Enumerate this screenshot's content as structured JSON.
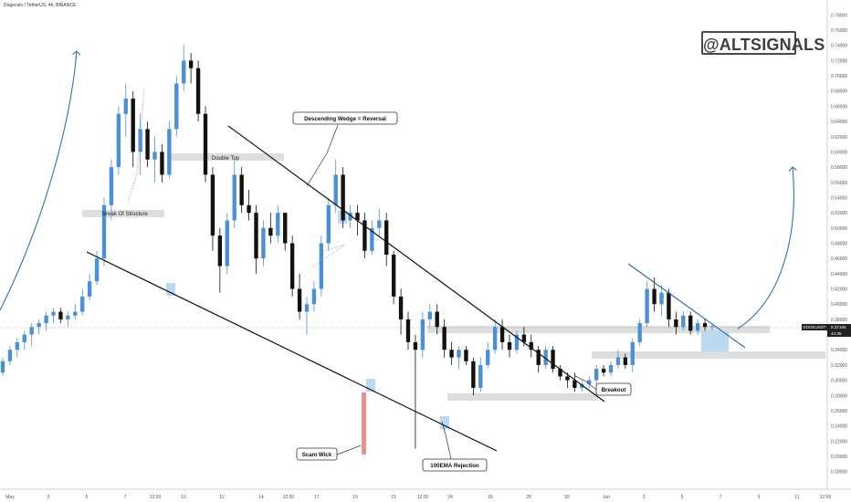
{
  "chart_data": {
    "type": "candlestick",
    "title": "Dogecoin / TetherUS, 4h, BINANCE",
    "watermark": "@ALTSIGNALS",
    "ylim": [
      0.17,
      0.79
    ],
    "y_ticks": [
      "0.18000",
      "0.20000",
      "0.22000",
      "0.24000",
      "0.26000",
      "0.28000",
      "0.30000",
      "0.32000",
      "0.34000",
      "0.36000",
      "0.38000",
      "0.40000",
      "0.42000",
      "0.44000",
      "0.46000",
      "0.48000",
      "0.50000",
      "0.52000",
      "0.54000",
      "0.56000",
      "0.58000",
      "0.60000",
      "0.62000",
      "0.64000",
      "0.66000",
      "0.68000",
      "0.70000",
      "0.72000",
      "0.74000",
      "0.76000",
      "0.78000"
    ],
    "x_ticks": [
      "May",
      "3",
      "5",
      "7",
      "12:00",
      "10",
      "12",
      "14",
      "12:00",
      "17",
      "19",
      "21",
      "12:00",
      "24",
      "26",
      "28",
      "30",
      "Jun",
      "3",
      "5",
      "7",
      "9",
      "11",
      "12:00"
    ],
    "price_label": {
      "symbol": "DOGEUSDT",
      "price": "0.37105",
      "countdown": "44:35"
    },
    "series": [
      {
        "name": "",
        "ohlc": [
          [
            0.31,
            0.33,
            0.305,
            0.325
          ],
          [
            0.325,
            0.345,
            0.32,
            0.34
          ],
          [
            0.34,
            0.355,
            0.33,
            0.35
          ],
          [
            0.35,
            0.365,
            0.34,
            0.36
          ],
          [
            0.36,
            0.375,
            0.345,
            0.37
          ],
          [
            0.37,
            0.38,
            0.36,
            0.375
          ],
          [
            0.375,
            0.39,
            0.365,
            0.385
          ],
          [
            0.385,
            0.395,
            0.375,
            0.39
          ],
          [
            0.39,
            0.395,
            0.375,
            0.38
          ],
          [
            0.38,
            0.39,
            0.37,
            0.385
          ],
          [
            0.385,
            0.4,
            0.38,
            0.39
          ],
          [
            0.39,
            0.42,
            0.385,
            0.41
          ],
          [
            0.41,
            0.44,
            0.405,
            0.43
          ],
          [
            0.43,
            0.47,
            0.425,
            0.46
          ],
          [
            0.46,
            0.54,
            0.45,
            0.53
          ],
          [
            0.53,
            0.59,
            0.51,
            0.58
          ],
          [
            0.58,
            0.66,
            0.57,
            0.65
          ],
          [
            0.65,
            0.69,
            0.62,
            0.67
          ],
          [
            0.67,
            0.68,
            0.58,
            0.6
          ],
          [
            0.6,
            0.65,
            0.57,
            0.63
          ],
          [
            0.63,
            0.64,
            0.58,
            0.59
          ],
          [
            0.59,
            0.62,
            0.56,
            0.6
          ],
          [
            0.6,
            0.61,
            0.56,
            0.57
          ],
          [
            0.57,
            0.64,
            0.565,
            0.63
          ],
          [
            0.63,
            0.7,
            0.62,
            0.69
          ],
          [
            0.69,
            0.74,
            0.68,
            0.72
          ],
          [
            0.72,
            0.73,
            0.69,
            0.71
          ],
          [
            0.71,
            0.72,
            0.64,
            0.65
          ],
          [
            0.65,
            0.66,
            0.56,
            0.57
          ],
          [
            0.57,
            0.58,
            0.47,
            0.49
          ],
          [
            0.49,
            0.5,
            0.415,
            0.45
          ],
          [
            0.45,
            0.52,
            0.44,
            0.51
          ],
          [
            0.51,
            0.59,
            0.5,
            0.57
          ],
          [
            0.57,
            0.58,
            0.52,
            0.53
          ],
          [
            0.53,
            0.55,
            0.51,
            0.52
          ],
          [
            0.52,
            0.53,
            0.44,
            0.46
          ],
          [
            0.46,
            0.51,
            0.45,
            0.5
          ],
          [
            0.5,
            0.52,
            0.48,
            0.49
          ],
          [
            0.49,
            0.53,
            0.48,
            0.52
          ],
          [
            0.52,
            0.52,
            0.47,
            0.48
          ],
          [
            0.48,
            0.49,
            0.41,
            0.42
          ],
          [
            0.42,
            0.44,
            0.38,
            0.39
          ],
          [
            0.39,
            0.41,
            0.36,
            0.4
          ],
          [
            0.4,
            0.43,
            0.39,
            0.42
          ],
          [
            0.42,
            0.49,
            0.41,
            0.48
          ],
          [
            0.48,
            0.54,
            0.47,
            0.53
          ],
          [
            0.53,
            0.59,
            0.52,
            0.57
          ],
          [
            0.57,
            0.58,
            0.5,
            0.51
          ],
          [
            0.51,
            0.53,
            0.5,
            0.52
          ],
          [
            0.52,
            0.53,
            0.49,
            0.51
          ],
          [
            0.51,
            0.52,
            0.46,
            0.47
          ],
          [
            0.47,
            0.51,
            0.465,
            0.5
          ],
          [
            0.5,
            0.525,
            0.49,
            0.51
          ],
          [
            0.51,
            0.52,
            0.45,
            0.465
          ],
          [
            0.465,
            0.47,
            0.4,
            0.41
          ],
          [
            0.41,
            0.42,
            0.36,
            0.38
          ],
          [
            0.38,
            0.39,
            0.34,
            0.35
          ],
          [
            0.35,
            0.36,
            0.21,
            0.34
          ],
          [
            0.34,
            0.39,
            0.33,
            0.38
          ],
          [
            0.38,
            0.4,
            0.37,
            0.39
          ],
          [
            0.39,
            0.4,
            0.36,
            0.37
          ],
          [
            0.37,
            0.38,
            0.33,
            0.34
          ],
          [
            0.34,
            0.35,
            0.32,
            0.33
          ],
          [
            0.33,
            0.345,
            0.315,
            0.34
          ],
          [
            0.34,
            0.345,
            0.32,
            0.325
          ],
          [
            0.325,
            0.33,
            0.28,
            0.29
          ],
          [
            0.29,
            0.33,
            0.285,
            0.32
          ],
          [
            0.32,
            0.35,
            0.315,
            0.34
          ],
          [
            0.34,
            0.38,
            0.335,
            0.37
          ],
          [
            0.37,
            0.38,
            0.34,
            0.35
          ],
          [
            0.35,
            0.36,
            0.33,
            0.34
          ],
          [
            0.34,
            0.365,
            0.335,
            0.36
          ],
          [
            0.36,
            0.37,
            0.345,
            0.35
          ],
          [
            0.35,
            0.36,
            0.33,
            0.34
          ],
          [
            0.34,
            0.345,
            0.31,
            0.32
          ],
          [
            0.32,
            0.345,
            0.315,
            0.34
          ],
          [
            0.34,
            0.345,
            0.31,
            0.315
          ],
          [
            0.315,
            0.32,
            0.3,
            0.305
          ],
          [
            0.305,
            0.31,
            0.29,
            0.3
          ],
          [
            0.3,
            0.31,
            0.285,
            0.29
          ],
          [
            0.29,
            0.3,
            0.285,
            0.295
          ],
          [
            0.295,
            0.305,
            0.29,
            0.3
          ],
          [
            0.3,
            0.32,
            0.295,
            0.315
          ],
          [
            0.315,
            0.32,
            0.305,
            0.31
          ],
          [
            0.31,
            0.325,
            0.305,
            0.32
          ],
          [
            0.32,
            0.34,
            0.315,
            0.33
          ],
          [
            0.33,
            0.335,
            0.315,
            0.32
          ],
          [
            0.32,
            0.355,
            0.31,
            0.35
          ],
          [
            0.35,
            0.38,
            0.345,
            0.375
          ],
          [
            0.375,
            0.43,
            0.37,
            0.42
          ],
          [
            0.42,
            0.435,
            0.39,
            0.4
          ],
          [
            0.4,
            0.425,
            0.385,
            0.415
          ],
          [
            0.415,
            0.42,
            0.37,
            0.38
          ],
          [
            0.38,
            0.39,
            0.36,
            0.37
          ],
          [
            0.37,
            0.39,
            0.365,
            0.385
          ],
          [
            0.385,
            0.39,
            0.36,
            0.365
          ],
          [
            0.365,
            0.38,
            0.36,
            0.375
          ],
          [
            0.375,
            0.38,
            0.365,
            0.37
          ],
          [
            0.37,
            0.375,
            0.365,
            0.3711
          ]
        ]
      }
    ],
    "annotations": {
      "break_of_structure": "Break Of Structure",
      "double_top": "Double Top",
      "descending_wedge": "Descending Wedge = Reversal",
      "scam_wick": "Scam Wick",
      "ema_rejection": "100EMA Rejection",
      "breakout": "Breakout"
    },
    "colors": {
      "up": "#4a90d9",
      "down": "#111111",
      "trendline": "#111111",
      "arrow": "#2f6fb3",
      "zone": "#dedede",
      "zone_blue": "#bcd9f2",
      "wick_red": "#e98f8f"
    },
    "grid": false,
    "legend": "none"
  }
}
